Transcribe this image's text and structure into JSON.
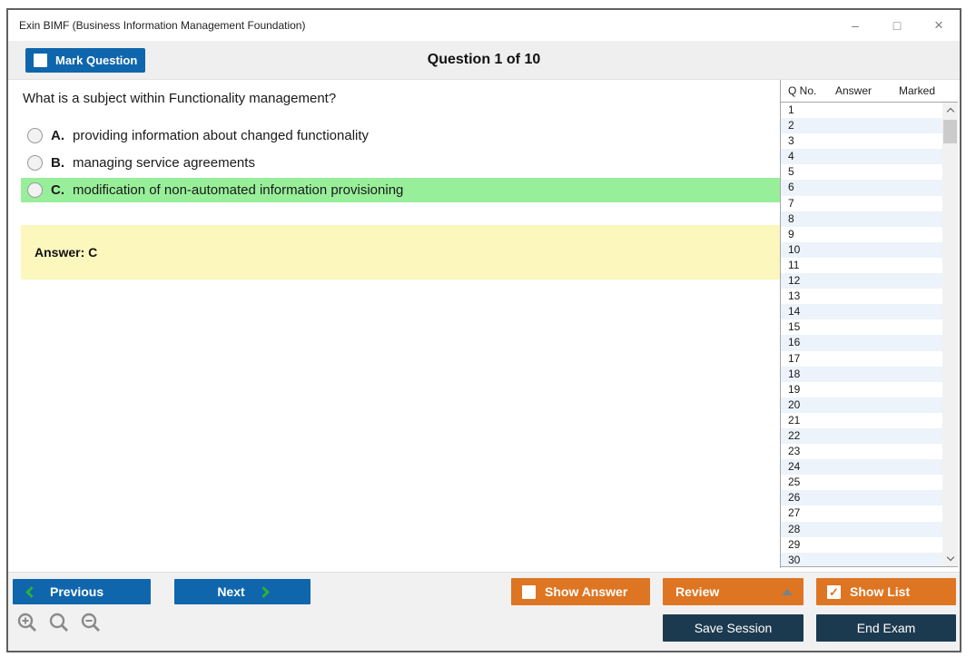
{
  "window": {
    "title": "Exin BIMF (Business Information Management Foundation)",
    "minimize_glyph": "–",
    "maximize_glyph": "□",
    "close_glyph": "×"
  },
  "header": {
    "mark_question_label": "Mark Question",
    "question_counter": "Question 1 of 10"
  },
  "question": {
    "text": "What is a subject within Functionality management?",
    "options": [
      {
        "letter": "A.",
        "text": "providing information about changed functionality",
        "highlighted": false
      },
      {
        "letter": "B.",
        "text": "managing service agreements",
        "highlighted": false
      },
      {
        "letter": "C.",
        "text": "modification of non-automated information provisioning",
        "highlighted": true
      }
    ],
    "answer_text": "Answer: C"
  },
  "question_list": {
    "columns": [
      "Q No.",
      "Answer",
      "Marked"
    ],
    "row_numbers": [
      1,
      2,
      3,
      4,
      5,
      6,
      7,
      8,
      9,
      10,
      11,
      12,
      13,
      14,
      15,
      16,
      17,
      18,
      19,
      20,
      21,
      22,
      23,
      24,
      25,
      26,
      27,
      28,
      29,
      30
    ]
  },
  "footer": {
    "previous_label": "Previous",
    "next_label": "Next",
    "show_answer_label": "Show Answer",
    "show_answer_checked": false,
    "review_label": "Review",
    "show_list_label": "Show List",
    "show_list_checked": true,
    "show_list_check_glyph": "✓",
    "save_session_label": "Save Session",
    "end_exam_label": "End Exam"
  },
  "colors": {
    "accent_blue": "#0f66ad",
    "accent_orange": "#de7522",
    "accent_navy": "#1c3a4f",
    "highlight_green": "#98ef9a",
    "answer_yellow": "#fbf7bd",
    "row_stripe_blue": "#ecf3fa",
    "chevron_green": "#2fae3a"
  }
}
